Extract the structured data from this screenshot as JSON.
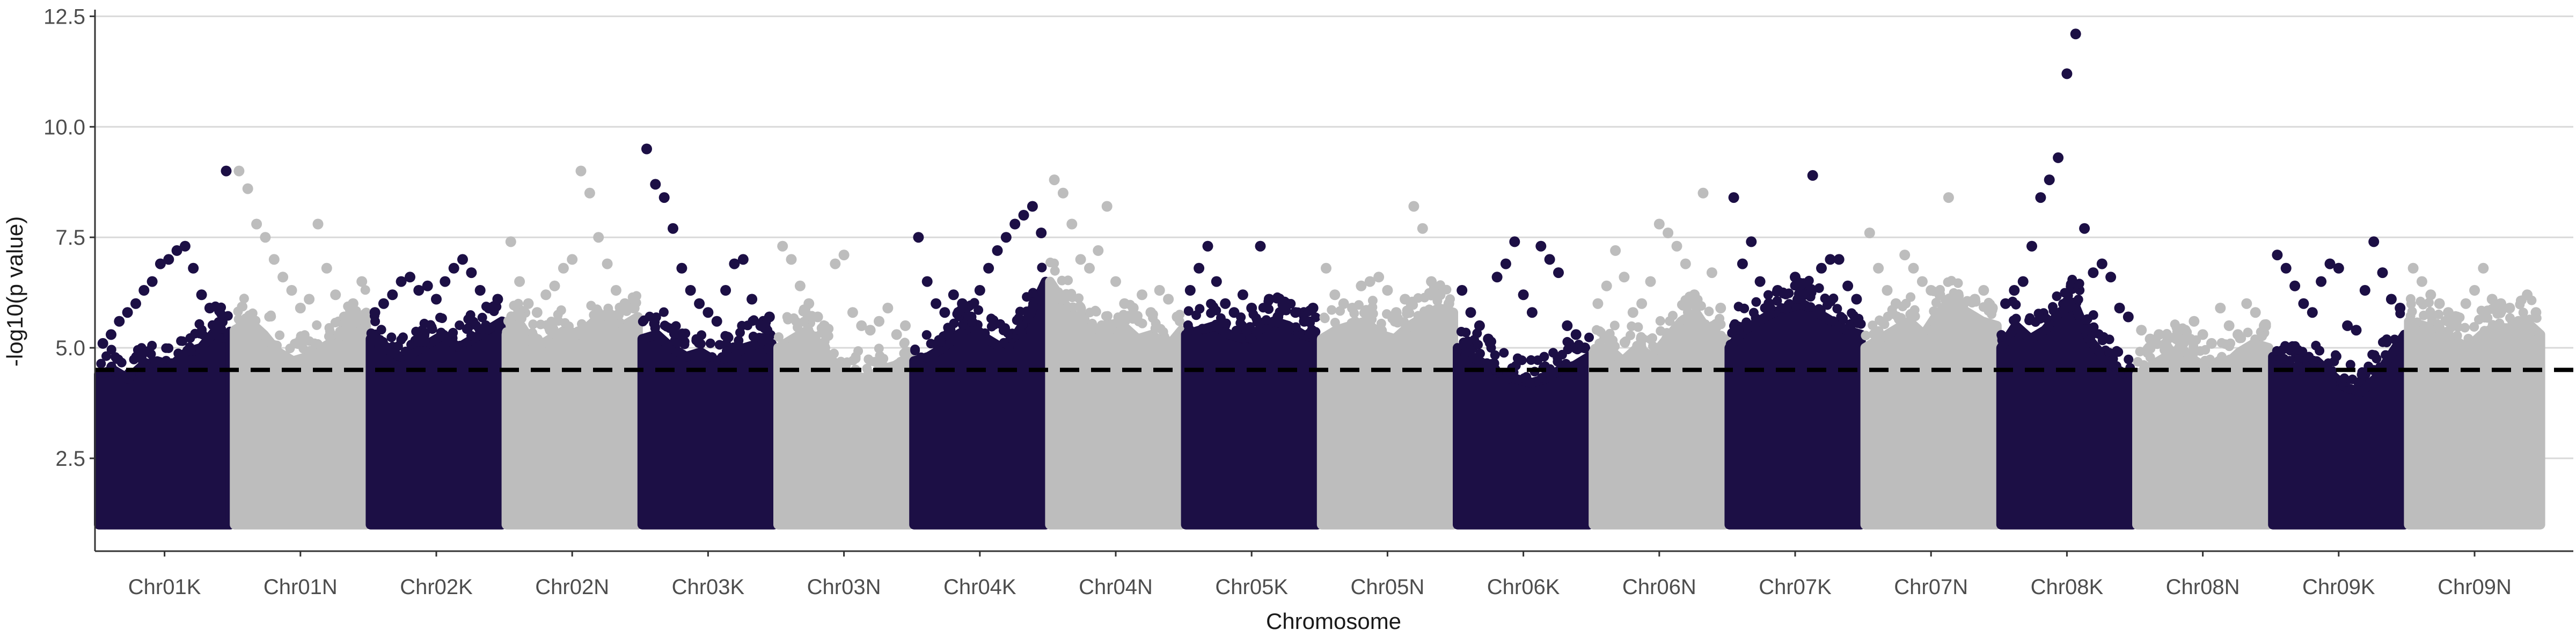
{
  "chart_data": {
    "type": "scatter",
    "subtype": "manhattan",
    "title": "",
    "xlabel": "Chromosome",
    "ylabel": "-log10(p value)",
    "ylim": [
      0.4,
      12.65
    ],
    "y_ticks": [
      2.5,
      5.0,
      7.5,
      10.0,
      12.5
    ],
    "y_tick_labels": [
      "2.5",
      "5.0",
      "7.5",
      "10.0",
      "12.5"
    ],
    "gridlines": true,
    "legend": "none",
    "threshold": 4.5,
    "threshold_style": "dashed",
    "min_value": 1.0,
    "colors": {
      "dark": "#1c0f45",
      "light": "#bdbdbd",
      "threshold": "#000000",
      "grid": "#d9d9d9"
    },
    "categories": [
      "Chr01K",
      "Chr01N",
      "Chr02K",
      "Chr02N",
      "Chr03K",
      "Chr03N",
      "Chr04K",
      "Chr04N",
      "Chr05K",
      "Chr05N",
      "Chr06K",
      "Chr06N",
      "Chr07K",
      "Chr07N",
      "Chr08K",
      "Chr08N",
      "Chr09K",
      "Chr09N"
    ],
    "series": [
      {
        "category": "Chr01K",
        "color": "dark",
        "bulk_top": [
          4.4,
          4.5,
          4.3,
          4.6,
          4.7,
          4.6,
          4.9,
          5.0,
          5.4,
          5.2
        ],
        "points": [
          5.1,
          5.3,
          5.6,
          5.8,
          6.0,
          6.3,
          6.5,
          6.9,
          7.0,
          7.2,
          7.3,
          6.8,
          6.2,
          5.9,
          5.5,
          9.0
        ]
      },
      {
        "category": "Chr01N",
        "color": "light",
        "bulk_top": [
          5.4,
          5.6,
          5.3,
          4.9,
          4.7,
          4.8,
          5.0,
          5.2,
          5.5,
          5.8
        ],
        "points": [
          9.0,
          8.6,
          7.8,
          7.5,
          7.0,
          6.6,
          6.3,
          5.9,
          6.1,
          7.8,
          6.8,
          6.2,
          5.7,
          6.0,
          6.5
        ]
      },
      {
        "category": "Chr02K",
        "color": "dark",
        "bulk_top": [
          5.2,
          5.0,
          4.8,
          4.9,
          5.1,
          5.3,
          5.0,
          5.2,
          5.4,
          5.6
        ],
        "points": [
          5.8,
          6.0,
          6.2,
          6.5,
          6.6,
          6.3,
          6.4,
          6.1,
          6.5,
          6.8,
          7.0,
          6.7,
          6.3,
          5.9,
          6.1
        ]
      },
      {
        "category": "Chr02N",
        "color": "light",
        "bulk_top": [
          5.3,
          5.5,
          5.0,
          5.2,
          5.4,
          5.3,
          5.6,
          5.8,
          5.5,
          5.7
        ],
        "points": [
          7.4,
          6.5,
          6.0,
          5.8,
          6.2,
          6.4,
          6.8,
          7.0,
          9.0,
          8.5,
          7.5,
          6.9,
          6.3,
          6.0,
          5.9
        ]
      },
      {
        "category": "Chr03K",
        "color": "dark",
        "bulk_top": [
          5.2,
          5.3,
          5.0,
          4.8,
          4.9,
          4.7,
          4.8,
          5.0,
          5.1,
          4.9
        ],
        "points": [
          9.5,
          8.7,
          8.4,
          7.7,
          6.8,
          6.3,
          6.0,
          5.8,
          5.6,
          6.3,
          6.9,
          7.0,
          6.1,
          5.5,
          5.7
        ]
      },
      {
        "category": "Chr03N",
        "color": "light",
        "bulk_top": [
          5.0,
          5.2,
          5.4,
          5.0,
          4.6,
          4.4,
          4.3,
          4.5,
          4.6,
          4.8
        ],
        "points": [
          7.3,
          7.0,
          6.4,
          6.0,
          5.7,
          5.4,
          6.9,
          7.1,
          5.8,
          5.5,
          5.4,
          5.6,
          5.9,
          5.3,
          5.5
        ]
      },
      {
        "category": "Chr04K",
        "color": "dark",
        "bulk_top": [
          4.7,
          4.8,
          5.0,
          5.3,
          5.5,
          5.2,
          5.0,
          5.3,
          5.8,
          6.5
        ],
        "points": [
          7.5,
          6.5,
          6.0,
          5.8,
          6.2,
          6.0,
          5.7,
          6.3,
          6.8,
          7.2,
          7.5,
          7.8,
          8.0,
          8.2,
          7.6
        ]
      },
      {
        "category": "Chr04N",
        "color": "light",
        "bulk_top": [
          6.5,
          6.0,
          5.6,
          5.4,
          5.3,
          5.5,
          5.2,
          5.3,
          5.0,
          5.4
        ],
        "points": [
          8.8,
          8.5,
          7.8,
          7.0,
          6.8,
          7.2,
          8.2,
          6.5,
          6.0,
          5.9,
          6.2,
          5.8,
          6.3,
          6.1,
          5.7
        ]
      },
      {
        "category": "Chr05K",
        "color": "dark",
        "bulk_top": [
          5.3,
          5.4,
          5.5,
          5.3,
          5.2,
          5.4,
          5.6,
          5.5,
          5.3,
          5.2
        ],
        "points": [
          6.3,
          6.8,
          7.3,
          6.5,
          6.0,
          5.8,
          6.2,
          5.9,
          7.3,
          6.1,
          5.7,
          6.0,
          5.8,
          5.6,
          5.9
        ]
      },
      {
        "category": "Chr05N",
        "color": "light",
        "bulk_top": [
          5.2,
          5.4,
          5.5,
          5.6,
          5.3,
          5.2,
          5.5,
          5.7,
          5.9,
          5.8
        ],
        "points": [
          6.8,
          6.2,
          6.0,
          5.9,
          6.4,
          6.5,
          6.6,
          6.3,
          5.8,
          6.1,
          8.2,
          7.7,
          6.5,
          6.2,
          6.0
        ]
      },
      {
        "category": "Chr06K",
        "color": "dark",
        "bulk_top": [
          5.0,
          4.8,
          4.6,
          4.4,
          4.3,
          4.2,
          4.3,
          4.5,
          4.6,
          4.8
        ],
        "points": [
          6.3,
          5.8,
          5.5,
          5.2,
          6.6,
          6.9,
          7.4,
          6.2,
          5.8,
          7.3,
          7.0,
          6.7,
          5.5,
          5.3,
          5.0
        ]
      },
      {
        "category": "Chr06N",
        "color": "light",
        "bulk_top": [
          4.9,
          5.0,
          4.7,
          5.0,
          4.8,
          5.2,
          5.6,
          5.8,
          5.3,
          5.2
        ],
        "points": [
          6.0,
          6.4,
          7.2,
          6.6,
          5.8,
          6.0,
          6.5,
          7.8,
          7.6,
          7.3,
          6.9,
          6.2,
          8.5,
          6.7,
          5.9
        ]
      },
      {
        "category": "Chr07K",
        "color": "dark",
        "bulk_top": [
          5.0,
          5.4,
          5.6,
          5.8,
          5.9,
          6.0,
          5.8,
          5.6,
          5.4,
          5.3
        ],
        "points": [
          8.4,
          6.9,
          7.4,
          6.5,
          6.0,
          6.3,
          5.9,
          6.6,
          6.2,
          8.9,
          6.8,
          7.0,
          7.0,
          6.4,
          6.1
        ]
      },
      {
        "category": "Chr07N",
        "color": "light",
        "bulk_top": [
          5.0,
          5.2,
          5.4,
          5.6,
          5.3,
          5.8,
          6.0,
          5.8,
          5.6,
          5.5
        ],
        "points": [
          7.6,
          6.8,
          6.3,
          6.0,
          7.1,
          6.8,
          6.5,
          6.3,
          6.2,
          8.4,
          6.0,
          5.8,
          6.1,
          6.3,
          5.9
        ]
      },
      {
        "category": "Chr08K",
        "color": "dark",
        "bulk_top": [
          5.0,
          5.5,
          5.2,
          5.4,
          5.8,
          6.0,
          5.2,
          4.8,
          4.5,
          4.3
        ],
        "points": [
          6.0,
          6.3,
          6.5,
          7.3,
          8.4,
          8.8,
          9.3,
          11.2,
          12.1,
          7.7,
          6.7,
          6.9,
          6.6,
          5.9,
          5.7
        ]
      },
      {
        "category": "Chr08N",
        "color": "light",
        "bulk_top": [
          4.4,
          4.6,
          4.8,
          5.0,
          4.7,
          4.5,
          4.6,
          4.9,
          5.1,
          5.0
        ],
        "points": [
          5.4,
          5.2,
          5.3,
          5.0,
          5.2,
          5.4,
          5.6,
          5.3,
          5.1,
          5.9,
          5.5,
          5.3,
          6.0,
          5.8,
          5.5
        ]
      },
      {
        "category": "Chr09K",
        "color": "dark",
        "bulk_top": [
          4.8,
          4.6,
          4.5,
          4.7,
          4.4,
          4.1,
          4.0,
          4.3,
          4.8,
          5.3
        ],
        "points": [
          7.1,
          6.8,
          6.4,
          6.0,
          5.8,
          6.5,
          6.9,
          6.8,
          5.5,
          5.4,
          6.3,
          7.4,
          6.7,
          6.1,
          5.9
        ]
      },
      {
        "category": "Chr09N",
        "color": "light",
        "bulk_top": [
          5.6,
          5.5,
          5.4,
          5.2,
          5.0,
          5.3,
          5.5,
          5.4,
          5.6,
          5.3
        ],
        "points": [
          6.8,
          6.5,
          6.2,
          6.0,
          5.8,
          5.7,
          6.0,
          6.3,
          6.8,
          6.1,
          6.0,
          5.9,
          5.6,
          6.2,
          5.8
        ]
      }
    ]
  }
}
